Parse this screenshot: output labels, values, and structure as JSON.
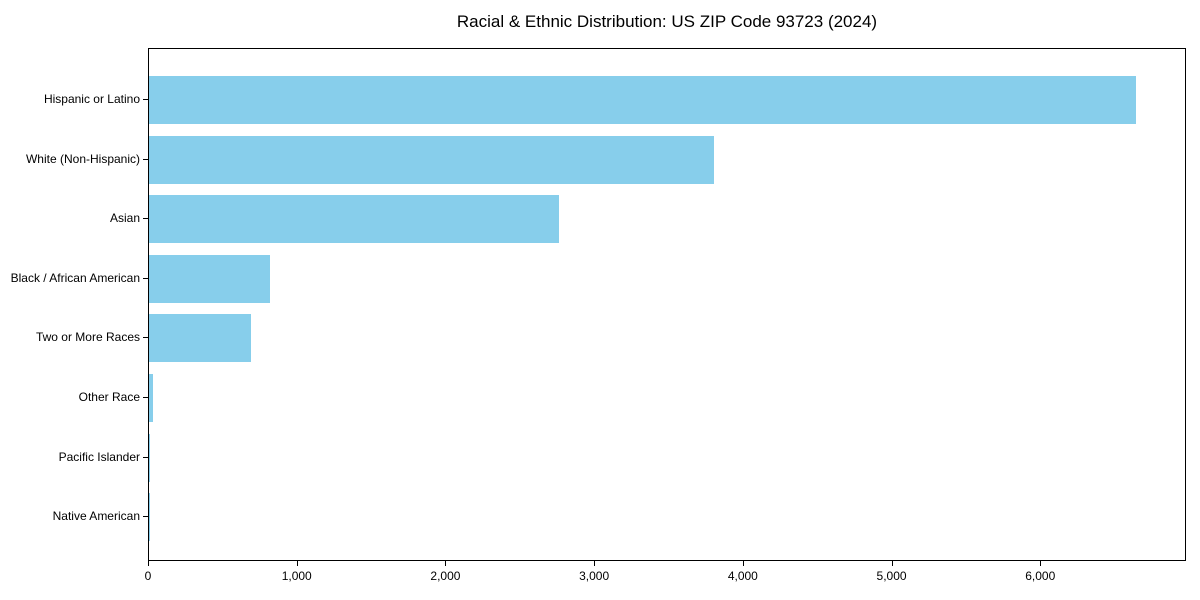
{
  "chart_data": {
    "type": "bar",
    "orientation": "horizontal",
    "title": "Racial & Ethnic Distribution: US ZIP Code 93723 (2024)",
    "categories": [
      "Hispanic or Latino",
      "White (Non-Hispanic)",
      "Asian",
      "Black / African American",
      "Two or More Races",
      "Other Race",
      "Pacific Islander",
      "Native American"
    ],
    "values": [
      6650,
      3810,
      2760,
      815,
      685,
      25,
      8,
      2
    ],
    "xlabel": "",
    "ylabel": "",
    "xlim": [
      0,
      6980
    ],
    "xticks": [
      0,
      1000,
      2000,
      3000,
      4000,
      5000,
      6000
    ],
    "xtick_labels": [
      "0",
      "1,000",
      "2,000",
      "3,000",
      "4,000",
      "5,000",
      "6,000"
    ],
    "bar_color": "#87CEEB",
    "frame_color": "#000000",
    "text_color": "#000000",
    "background_color": "#ffffff",
    "grid": false,
    "legend": false
  }
}
